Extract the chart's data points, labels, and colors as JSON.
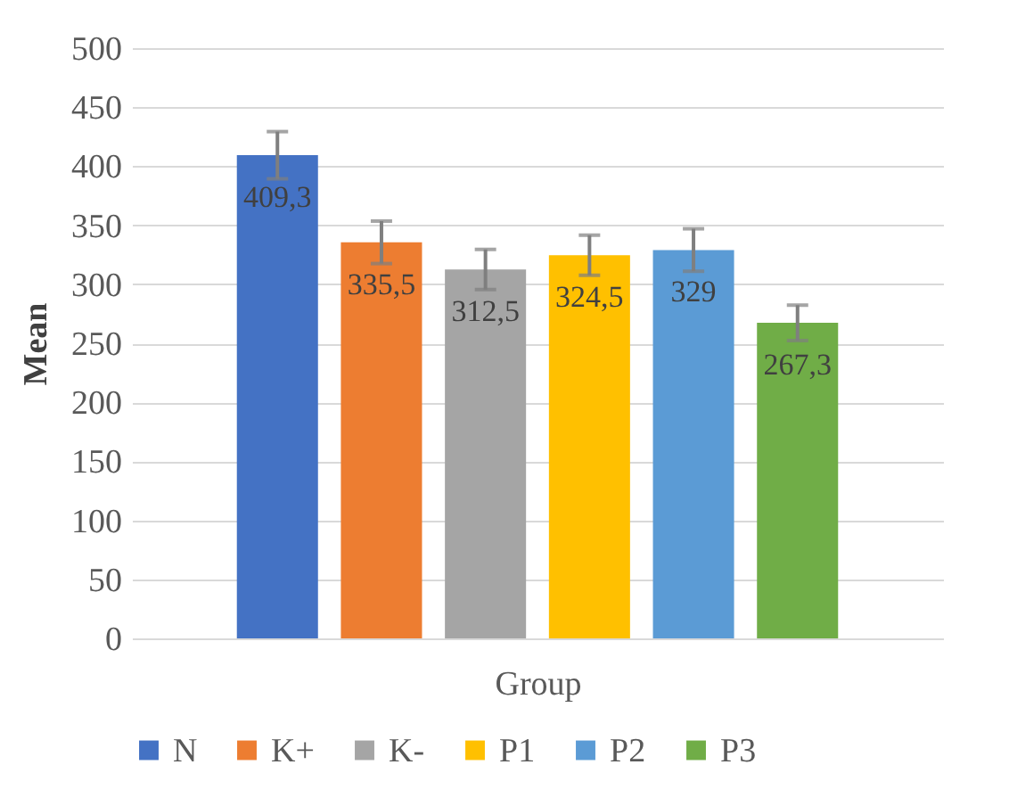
{
  "chart_data": {
    "type": "bar",
    "xlabel": "Group",
    "ylabel": "Mean",
    "categories": [
      null
    ],
    "ylim": [
      0,
      500
    ],
    "yticks": [
      0,
      50,
      100,
      150,
      200,
      250,
      300,
      350,
      400,
      450,
      500
    ],
    "grid": "y",
    "legend": "bottom",
    "series": [
      {
        "name": "N",
        "color": "#4472c4",
        "values": [
          409.3
        ],
        "errors": [
          20
        ],
        "value_labels": [
          "409,3"
        ]
      },
      {
        "name": "K+",
        "color": "#ed7d31",
        "values": [
          335.5
        ],
        "errors": [
          18
        ],
        "value_labels": [
          "335,5"
        ]
      },
      {
        "name": "K-",
        "color": "#a5a5a5",
        "values": [
          312.5
        ],
        "errors": [
          17
        ],
        "value_labels": [
          "312,5"
        ]
      },
      {
        "name": "P1",
        "color": "#ffc000",
        "values": [
          324.5
        ],
        "errors": [
          17
        ],
        "value_labels": [
          "324,5"
        ]
      },
      {
        "name": "P2",
        "color": "#5b9bd5",
        "values": [
          329
        ],
        "errors": [
          18
        ],
        "value_labels": [
          "329"
        ]
      },
      {
        "name": "P3",
        "color": "#70ad47",
        "values": [
          267.3
        ],
        "errors": [
          15
        ],
        "value_labels": [
          "267,3"
        ]
      }
    ]
  }
}
